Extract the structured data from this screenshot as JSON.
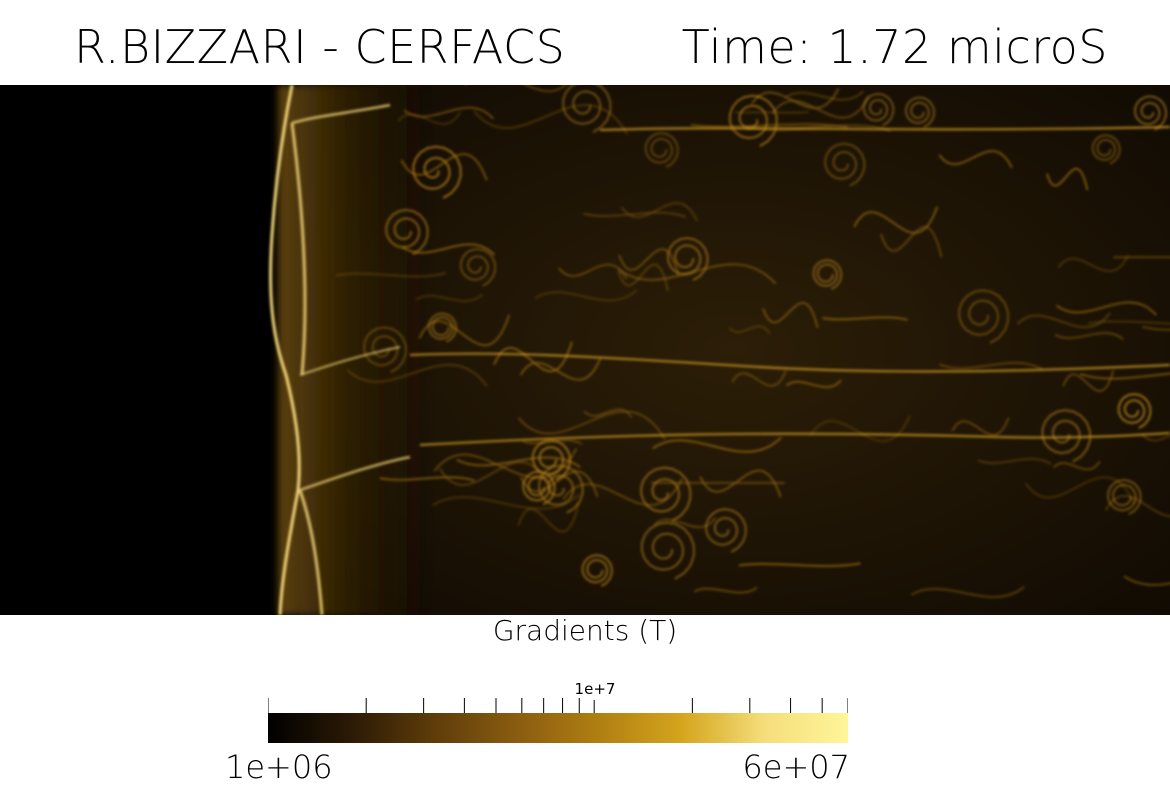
{
  "header": {
    "author": "R.BIZZARI - CERFACS",
    "time": "Time: 1.72 microS"
  },
  "colorbar": {
    "title": "Gradients (T)",
    "label_mid": "1e+7",
    "label_min": "1e+06",
    "label_max": "6e+07",
    "range": [
      1000000,
      60000000
    ],
    "scale": "log",
    "colors": [
      "#000000",
      "#2b1a05",
      "#5e3c0a",
      "#8a5c10",
      "#b07f12",
      "#d5a51e",
      "#f5de7a",
      "#fff59a"
    ]
  },
  "visualization": {
    "description_color": "#d9a520",
    "background": "#000000"
  }
}
